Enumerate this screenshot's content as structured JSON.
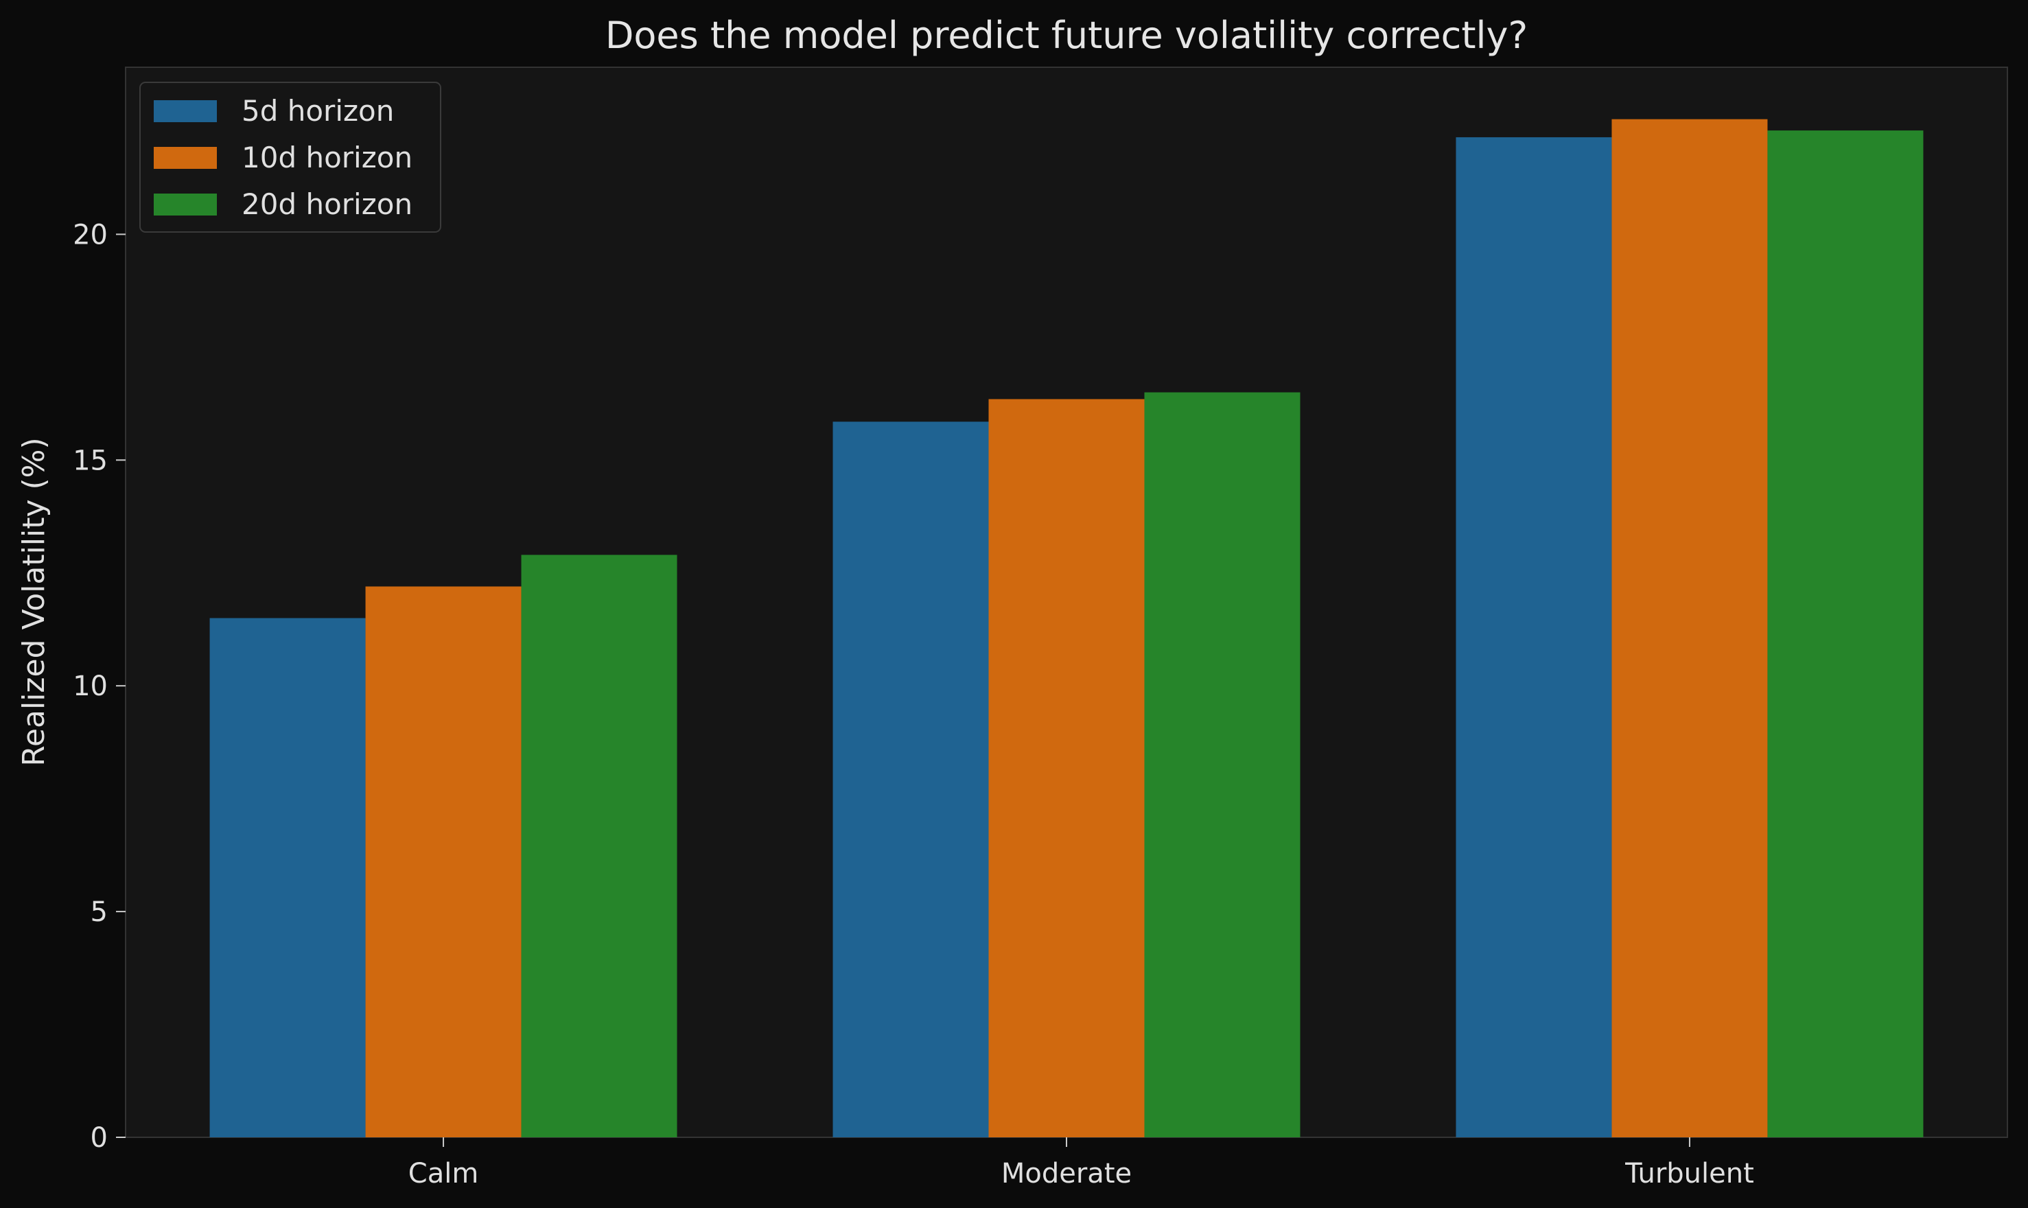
{
  "chart_data": {
    "type": "bar",
    "title": "Does the model predict future volatility correctly?",
    "xlabel": "",
    "ylabel": "Realized Volatility (%)",
    "categories": [
      "Calm",
      "Moderate",
      "Turbulent"
    ],
    "series": [
      {
        "name": "5d horizon",
        "color": "#1f6392",
        "values": [
          11.5,
          15.85,
          22.15
        ]
      },
      {
        "name": "10d horizon",
        "color": "#d0690f",
        "values": [
          12.2,
          16.35,
          22.55
        ]
      },
      {
        "name": "20d horizon",
        "color": "#26852a",
        "values": [
          12.9,
          16.5,
          22.3
        ]
      }
    ],
    "ylim": [
      0,
      23.7
    ],
    "yticks": [
      0,
      5,
      10,
      15,
      20
    ],
    "grid": false,
    "legend_position": "top-left",
    "background": "#0b0b0b",
    "axes_background": "#151515",
    "text_color": "#e0e0e0"
  }
}
